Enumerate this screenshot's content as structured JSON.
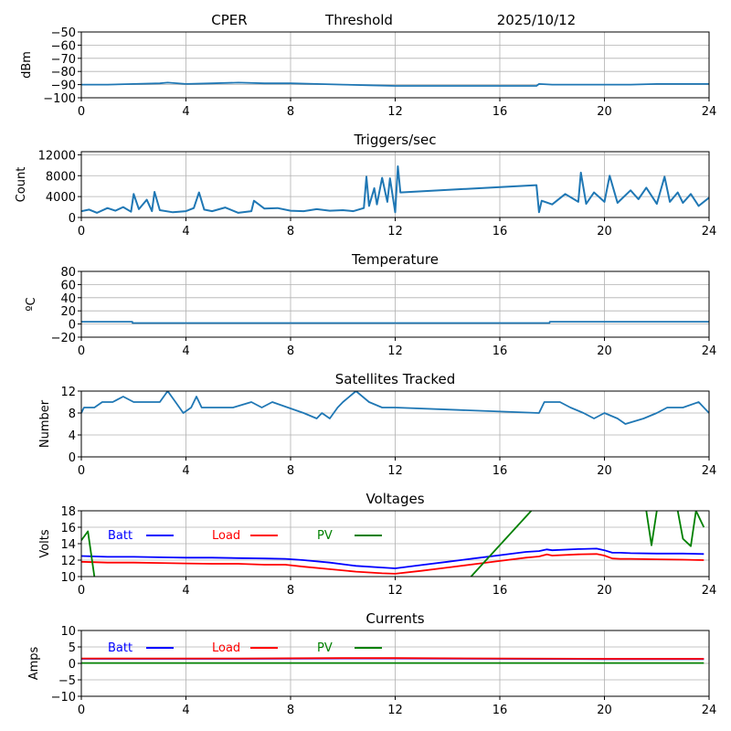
{
  "header": {
    "site": "CPER",
    "mode": "Threshold",
    "date": "2025/10/12"
  },
  "chart_data": [
    {
      "id": "signal",
      "type": "line",
      "title": "",
      "xlabel": "",
      "ylabel": "dBm",
      "xlim": [
        0,
        24
      ],
      "ylim": [
        -100,
        -50
      ],
      "xticks": [
        0,
        4,
        8,
        12,
        16,
        20,
        24
      ],
      "yticks": [
        -100,
        -90,
        -80,
        -70,
        -60,
        -50
      ],
      "ytick_labels": [
        "−100",
        "−90",
        "−80",
        "−70",
        "−60",
        "−50"
      ],
      "grid": true,
      "series": [
        {
          "name": "dBm",
          "color": "#1f77b4",
          "x": [
            0,
            1,
            2,
            3,
            3.3,
            4,
            5,
            6,
            7,
            8,
            9,
            10,
            11,
            12,
            14,
            16,
            17.4,
            17.5,
            18,
            19,
            20,
            21,
            22,
            23,
            24
          ],
          "y": [
            -90,
            -90,
            -89.5,
            -89,
            -88.5,
            -89.5,
            -89,
            -88.5,
            -89,
            -89,
            -89.5,
            -90,
            -90.5,
            -91,
            -91,
            -91,
            -91,
            -89.5,
            -90,
            -90,
            -90,
            -90,
            -89.5,
            -89.5,
            -89.5
          ]
        }
      ]
    },
    {
      "id": "triggers",
      "type": "line",
      "title": "Triggers/sec",
      "xlabel": "",
      "ylabel": "Count",
      "xlim": [
        0,
        24
      ],
      "ylim": [
        0,
        12600
      ],
      "xticks": [
        0,
        4,
        8,
        12,
        16,
        20,
        24
      ],
      "yticks": [
        0,
        4000,
        8000,
        12000
      ],
      "ytick_labels": [
        "0",
        "4000",
        "8000",
        "12000"
      ],
      "grid": true,
      "series": [
        {
          "name": "Count",
          "color": "#1f77b4",
          "x": [
            0,
            0.3,
            0.6,
            1.0,
            1.3,
            1.6,
            1.9,
            2.0,
            2.2,
            2.5,
            2.7,
            2.8,
            3.0,
            3.5,
            4.0,
            4.3,
            4.5,
            4.7,
            5.0,
            5.5,
            6.0,
            6.5,
            6.6,
            7.0,
            7.5,
            8.0,
            8.5,
            9.0,
            9.5,
            10.0,
            10.4,
            10.8,
            10.9,
            11.0,
            11.2,
            11.3,
            11.5,
            11.7,
            11.8,
            12.0,
            12.1,
            12.2,
            17.4,
            17.5,
            17.6,
            18.0,
            18.5,
            19.0,
            19.1,
            19.3,
            19.6,
            20.0,
            20.2,
            20.5,
            21.0,
            21.3,
            21.6,
            22.0,
            22.3,
            22.5,
            22.8,
            23.0,
            23.3,
            23.6,
            24.0
          ],
          "y": [
            1200,
            1500,
            900,
            1800,
            1300,
            2000,
            1100,
            4500,
            1600,
            3400,
            1200,
            4900,
            1400,
            1000,
            1200,
            1800,
            4800,
            1500,
            1200,
            1900,
            900,
            1200,
            3200,
            1700,
            1800,
            1300,
            1200,
            1600,
            1300,
            1400,
            1200,
            1800,
            7800,
            2200,
            5600,
            2500,
            7600,
            3000,
            7500,
            1000,
            9800,
            4800,
            6200,
            1000,
            3200,
            2500,
            4500,
            3000,
            8600,
            2600,
            4800,
            3000,
            8000,
            2800,
            5200,
            3500,
            5700,
            2600,
            7800,
            3000,
            4800,
            2800,
            4500,
            2200,
            3800
          ]
        }
      ]
    },
    {
      "id": "temperature",
      "type": "line",
      "title": "Temperature",
      "xlabel": "",
      "ylabel": "ºC",
      "xlim": [
        0,
        24
      ],
      "ylim": [
        -20,
        80
      ],
      "xticks": [
        0,
        4,
        8,
        12,
        16,
        20,
        24
      ],
      "yticks": [
        -20,
        0,
        20,
        40,
        60,
        80
      ],
      "ytick_labels": [
        "−20",
        "0",
        "20",
        "40",
        "60",
        "80"
      ],
      "grid": true,
      "series": [
        {
          "name": "Temperature",
          "color": "#1f77b4",
          "x": [
            0,
            1.95,
            1.96,
            17.9,
            17.91,
            24
          ],
          "y": [
            3.5,
            3.5,
            1.5,
            1.5,
            3.5,
            3.5
          ]
        }
      ]
    },
    {
      "id": "satellites",
      "type": "line",
      "title": "Satellites Tracked",
      "xlabel": "",
      "ylabel": "Number",
      "xlim": [
        0,
        24
      ],
      "ylim": [
        0,
        12
      ],
      "xticks": [
        0,
        4,
        8,
        12,
        16,
        20,
        24
      ],
      "yticks": [
        0,
        4,
        8,
        12
      ],
      "ytick_labels": [
        "0",
        "4",
        "8",
        "12"
      ],
      "grid": true,
      "series": [
        {
          "name": "Number",
          "color": "#1f77b4",
          "x": [
            0,
            0.1,
            0.5,
            0.8,
            1.2,
            1.6,
            2.0,
            3.0,
            3.3,
            3.6,
            3.9,
            4.2,
            4.4,
            4.6,
            5.8,
            6.5,
            6.9,
            7.3,
            7.9,
            8.5,
            9.0,
            9.2,
            9.5,
            9.8,
            10.0,
            10.5,
            11.0,
            11.5,
            12.0,
            17.5,
            17.7,
            18.3,
            18.7,
            19.2,
            19.6,
            20.0,
            20.5,
            20.8,
            21.5,
            22.0,
            22.4,
            23.0,
            23.6,
            24.0
          ],
          "y": [
            8,
            9,
            9,
            10,
            10,
            11,
            10,
            10,
            12,
            10,
            8,
            9,
            11,
            9,
            9,
            10,
            9,
            10,
            9,
            8,
            7,
            8,
            7,
            9,
            10,
            12,
            10,
            9,
            9,
            8,
            10,
            10,
            9,
            8,
            7,
            8,
            7,
            6,
            7,
            8,
            9,
            9,
            10,
            8
          ]
        }
      ]
    },
    {
      "id": "voltages",
      "type": "line",
      "title": "Voltages",
      "xlabel": "",
      "ylabel": "Volts",
      "xlim": [
        0,
        24
      ],
      "ylim": [
        10,
        18
      ],
      "xticks": [
        0,
        4,
        8,
        12,
        16,
        20,
        24
      ],
      "yticks": [
        10,
        12,
        14,
        16,
        18
      ],
      "ytick_labels": [
        "10",
        "12",
        "14",
        "16",
        "18"
      ],
      "grid": true,
      "legend": {
        "placement": "top-left inline",
        "entries": [
          "Batt",
          "Load",
          "PV"
        ]
      },
      "series": [
        {
          "name": "Batt",
          "color": "#0000ff",
          "x": [
            0,
            1,
            2,
            3,
            4,
            5,
            6,
            7,
            7.8,
            8.5,
            9.5,
            10.5,
            11.5,
            12,
            13,
            14,
            15,
            16,
            17,
            17.5,
            17.8,
            18,
            19,
            19.7,
            20,
            20.3,
            20.6,
            21,
            22,
            23,
            23.8
          ],
          "y": [
            12.5,
            12.4,
            12.4,
            12.35,
            12.3,
            12.3,
            12.25,
            12.2,
            12.15,
            12.0,
            11.7,
            11.3,
            11.1,
            11.0,
            11.4,
            11.8,
            12.2,
            12.6,
            13.0,
            13.1,
            13.3,
            13.2,
            13.35,
            13.4,
            13.2,
            12.9,
            12.9,
            12.85,
            12.8,
            12.8,
            12.75
          ]
        },
        {
          "name": "Load",
          "color": "#ff0000",
          "x": [
            0,
            1,
            2,
            3,
            4,
            5,
            6,
            7,
            7.8,
            8.5,
            9.5,
            10.5,
            11.5,
            12,
            13,
            14,
            15,
            16,
            17,
            17.5,
            17.8,
            18,
            19,
            19.7,
            20,
            20.3,
            20.6,
            21,
            22,
            23,
            23.8
          ],
          "y": [
            11.8,
            11.7,
            11.7,
            11.65,
            11.6,
            11.55,
            11.55,
            11.45,
            11.45,
            11.2,
            10.9,
            10.6,
            10.4,
            10.35,
            10.7,
            11.1,
            11.5,
            11.9,
            12.3,
            12.45,
            12.7,
            12.55,
            12.7,
            12.75,
            12.55,
            12.2,
            12.15,
            12.15,
            12.1,
            12.05,
            12.0
          ]
        },
        {
          "name": "PV",
          "color": "#008000",
          "x": [
            0,
            0.25,
            0.5,
            0.55,
            14.9,
            17.2,
            17.3,
            21.6,
            21.8,
            22.0,
            22.1,
            22.8,
            23.0,
            23.3,
            23.5,
            23.8
          ],
          "y": [
            14.4,
            15.5,
            10.0,
            null,
            10.0,
            18.0,
            null,
            18.0,
            13.8,
            18.0,
            null,
            18.0,
            14.6,
            13.7,
            18.0,
            16.0
          ]
        }
      ]
    },
    {
      "id": "currents",
      "type": "line",
      "title": "Currents",
      "xlabel": "",
      "ylabel": "Amps",
      "xlim": [
        0,
        24
      ],
      "ylim": [
        -10,
        10
      ],
      "xticks": [
        0,
        4,
        8,
        12,
        16,
        20,
        24
      ],
      "yticks": [
        -10,
        -5,
        0,
        5,
        10
      ],
      "ytick_labels": [
        "−10",
        "−5",
        "0",
        "5",
        "10"
      ],
      "grid": true,
      "legend": {
        "placement": "top-left inline",
        "entries": [
          "Batt",
          "Load",
          "PV"
        ]
      },
      "series": [
        {
          "name": "Batt",
          "color": "#0000ff",
          "x": [
            0,
            6,
            10,
            12,
            16,
            20,
            23.8
          ],
          "y": [
            1.4,
            1.4,
            1.5,
            1.5,
            1.4,
            1.3,
            1.3
          ]
        },
        {
          "name": "Load",
          "color": "#ff0000",
          "x": [
            0,
            6,
            10,
            12,
            16,
            20,
            23.8
          ],
          "y": [
            1.5,
            1.5,
            1.6,
            1.6,
            1.5,
            1.4,
            1.4
          ]
        },
        {
          "name": "PV",
          "color": "#008000",
          "x": [
            0,
            23.8
          ],
          "y": [
            0.1,
            0.1
          ]
        }
      ]
    }
  ]
}
